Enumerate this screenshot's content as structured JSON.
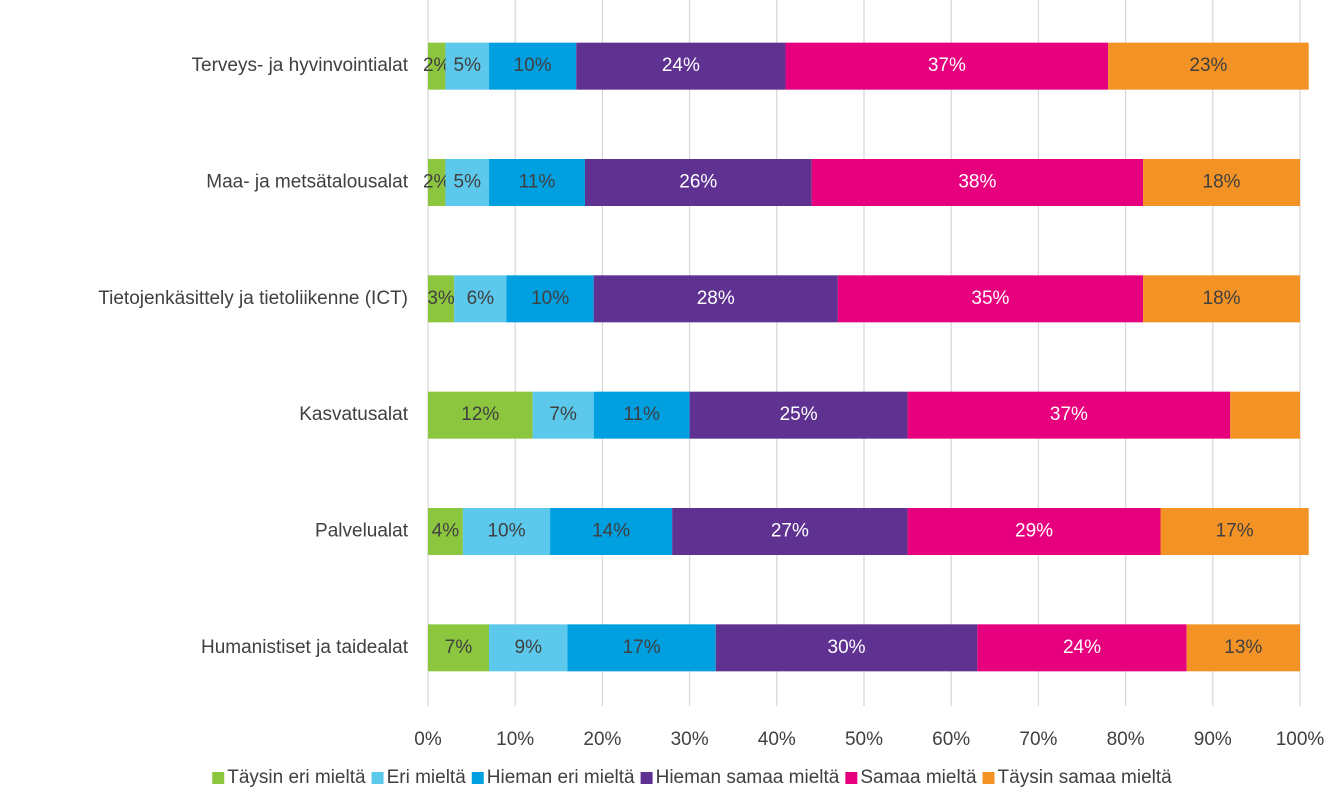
{
  "chart_data": {
    "type": "stacked-barh",
    "categories": [
      "Terveys- ja hyvinvointialat",
      "Maa- ja metsätalousalat",
      "Tietojenkäsittely ja tietoliikenne (ICT)",
      "Kasvatusalat",
      "Palvelualat",
      "Humanistiset ja taidealat"
    ],
    "series": [
      {
        "name": "Täysin eri mieltä",
        "color": "#8cc63f",
        "values": [
          2,
          2,
          3,
          12,
          4,
          7
        ],
        "value_labels": [
          "2%",
          "2%",
          "3%",
          "12%",
          "4%",
          "7%"
        ]
      },
      {
        "name": "Eri mieltä",
        "color": "#5bc8ec",
        "values": [
          5,
          5,
          6,
          7,
          10,
          9
        ],
        "value_labels": [
          "5%",
          "5%",
          "6%",
          "7%",
          "10%",
          "9%"
        ]
      },
      {
        "name": "Hieman eri mieltä",
        "color": "#009fdf",
        "values": [
          10,
          11,
          10,
          11,
          14,
          17
        ],
        "value_labels": [
          "10%",
          "11%",
          "10%",
          "11%",
          "14%",
          "17%"
        ]
      },
      {
        "name": "Hieman samaa mieltä",
        "color": "#5f3292",
        "values": [
          24,
          26,
          28,
          25,
          27,
          30
        ],
        "value_labels": [
          "24%",
          "26%",
          "28%",
          "25%",
          "27%",
          "30%"
        ]
      },
      {
        "name": "Samaa mieltä",
        "color": "#e6007e",
        "values": [
          37,
          38,
          35,
          37,
          29,
          24
        ],
        "value_labels": [
          "37%",
          "38%",
          "35%",
          "37%",
          "29%",
          "24%"
        ]
      },
      {
        "name": "Täysin samaa mieltä",
        "color": "#f39325",
        "values": [
          23,
          18,
          18,
          8,
          17,
          13
        ],
        "value_labels": [
          "23%",
          "18%",
          "18%",
          null,
          "17%",
          "13%"
        ]
      }
    ],
    "xlim": [
      0,
      100
    ],
    "xticks": [
      {
        "value": 0,
        "label": "0%"
      },
      {
        "value": 10,
        "label": "10%"
      },
      {
        "value": 20,
        "label": "20%"
      },
      {
        "value": 30,
        "label": "30%"
      },
      {
        "value": 40,
        "label": "40%"
      },
      {
        "value": 50,
        "label": "50%"
      },
      {
        "value": 60,
        "label": "60%"
      },
      {
        "value": 70,
        "label": "70%"
      },
      {
        "value": 80,
        "label": "80%"
      },
      {
        "value": 90,
        "label": "90%"
      },
      {
        "value": 100,
        "label": "100%"
      }
    ],
    "grid": true,
    "legend": "bottom"
  }
}
